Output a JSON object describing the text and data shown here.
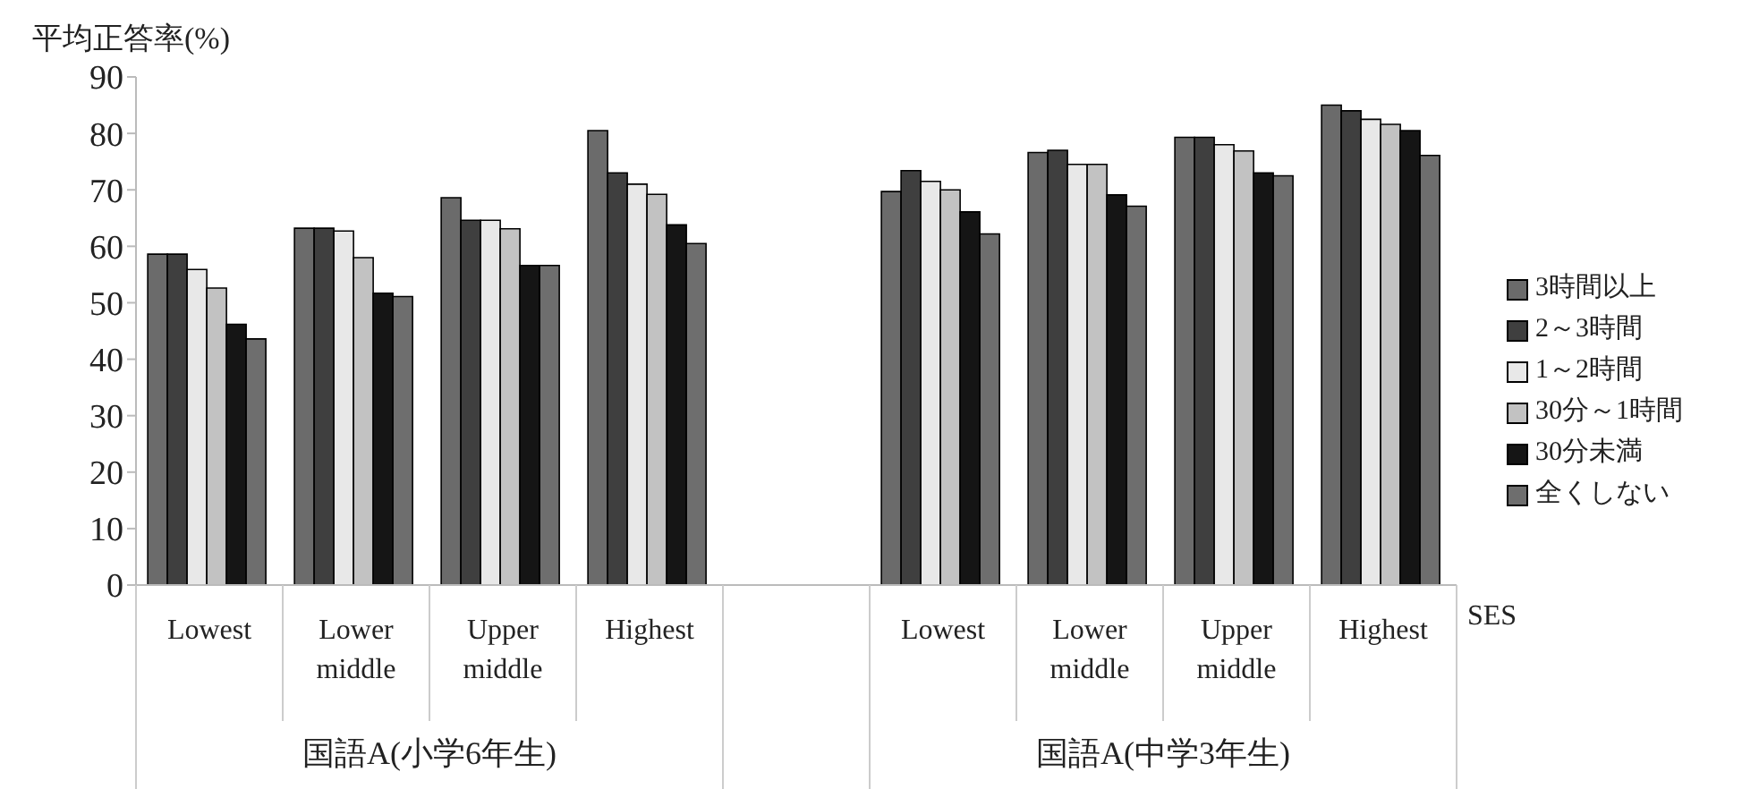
{
  "chart_data": {
    "type": "bar",
    "ylabel": "平均正答率(%)",
    "categories": [
      "Lowest",
      "Lower middle",
      "Upper middle",
      "Highest",
      null,
      "Lowest",
      "Lower middle",
      "Upper middle",
      "Highest"
    ],
    "annotations": [
      "国語A(小学6年生)",
      "国語A(中学3年生)",
      "SES"
    ],
    "series": [
      {
        "name": "3時間以上",
        "color": "#6b6b6b",
        "values": [
          58.6,
          63.2,
          68.6,
          80.5,
          null,
          69.7,
          76.6,
          79.3,
          85.0
        ]
      },
      {
        "name": "2～3時間",
        "color": "#3f3f3f",
        "values": [
          58.6,
          63.2,
          64.6,
          73.0,
          null,
          73.4,
          77.0,
          79.3,
          84.0
        ]
      },
      {
        "name": "1～2時間",
        "color": "#e8e8e8",
        "values": [
          55.9,
          62.7,
          64.6,
          71.0,
          null,
          71.5,
          74.5,
          78.0,
          82.5
        ]
      },
      {
        "name": "30分～1時間",
        "color": "#c2c2c2",
        "values": [
          52.6,
          58.0,
          63.1,
          69.2,
          null,
          70.0,
          74.5,
          76.9,
          81.6
        ]
      },
      {
        "name": "30分未満",
        "color": "#151515",
        "values": [
          46.2,
          51.7,
          56.6,
          63.8,
          null,
          66.1,
          69.1,
          73.0,
          80.5
        ]
      },
      {
        "name": "全くしない",
        "color": "#6e6e6e",
        "values": [
          43.6,
          51.1,
          56.6,
          60.5,
          null,
          62.2,
          67.1,
          72.5,
          76.1
        ]
      }
    ],
    "ylim": [
      0,
      90
    ],
    "yticks": [
      0,
      10,
      20,
      30,
      40,
      50,
      60,
      70,
      80,
      90
    ],
    "grid": false,
    "legend": "right"
  }
}
